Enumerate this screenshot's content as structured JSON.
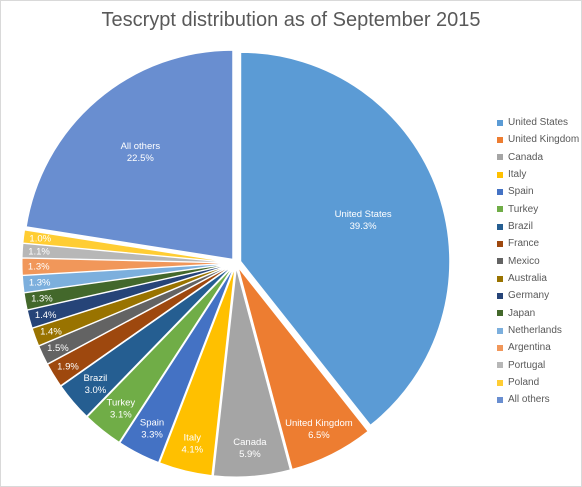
{
  "chart_data": {
    "type": "pie",
    "title": "Tescrypt distribution as of September 2015",
    "legend_position": "right",
    "slices": [
      {
        "name": "United States",
        "value": 39.3,
        "label": "39.3%",
        "color": "#5b9bd5"
      },
      {
        "name": "United Kingdom",
        "value": 6.5,
        "label": "6.5%",
        "color": "#ed7d31"
      },
      {
        "name": "Canada",
        "value": 5.9,
        "label": "5.9%",
        "color": "#a5a5a5"
      },
      {
        "name": "Italy",
        "value": 4.1,
        "label": "4.1%",
        "color": "#ffc000"
      },
      {
        "name": "Spain",
        "value": 3.3,
        "label": "3.3%",
        "color": "#4472c4"
      },
      {
        "name": "Turkey",
        "value": 3.1,
        "label": "3.1%",
        "color": "#70ad47"
      },
      {
        "name": "Brazil",
        "value": 3.0,
        "label": "3.0%",
        "color": "#255e91"
      },
      {
        "name": "France",
        "value": 1.9,
        "label": "1.9%",
        "color": "#9e480e"
      },
      {
        "name": "Mexico",
        "value": 1.5,
        "label": "1.5%",
        "color": "#636363"
      },
      {
        "name": "Australia",
        "value": 1.4,
        "label": "1.4%",
        "color": "#997300"
      },
      {
        "name": "Germany",
        "value": 1.4,
        "label": "1.4%",
        "color": "#264478"
      },
      {
        "name": "Japan",
        "value": 1.3,
        "label": "1.3%",
        "color": "#43682b"
      },
      {
        "name": "Netherlands",
        "value": 1.3,
        "label": "1.3%",
        "color": "#7cafdd"
      },
      {
        "name": "Argentina",
        "value": 1.3,
        "label": "1.3%",
        "color": "#f1975a"
      },
      {
        "name": "Portugal",
        "value": 1.1,
        "label": "1.1%",
        "color": "#b7b7b7"
      },
      {
        "name": "Poland",
        "value": 1.0,
        "label": "1.0%",
        "color": "#ffcd33"
      },
      {
        "name": "All others",
        "value": 22.5,
        "label": "22.5%",
        "color": "#698ed0"
      }
    ]
  }
}
